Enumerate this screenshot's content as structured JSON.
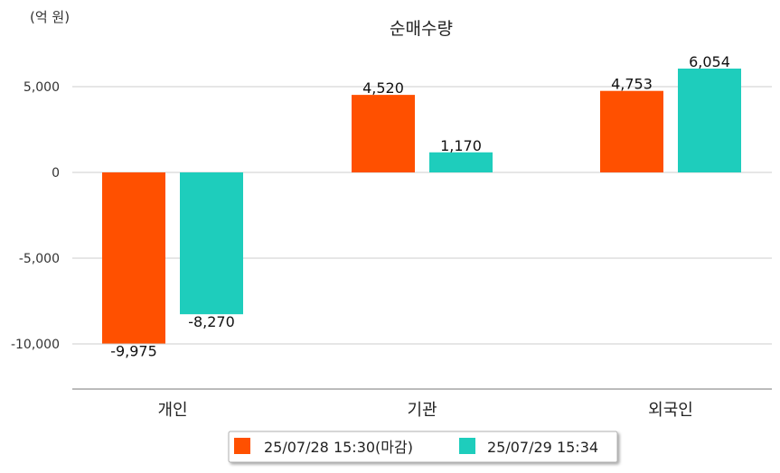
{
  "chart_data": {
    "type": "bar",
    "title": "순매수량",
    "unit_label": "(억 원)",
    "categories": [
      "개인",
      "기관",
      "외국인"
    ],
    "series": [
      {
        "name": "25/07/28 15:30(마감)",
        "color": "#ff5000",
        "values": [
          -9975,
          4520,
          4753
        ],
        "labels": [
          "-9,975",
          "4,520",
          "4,753"
        ]
      },
      {
        "name": "25/07/29 15:34",
        "color": "#1ecdbc",
        "values": [
          -8270,
          1170,
          6054
        ],
        "labels": [
          "-8,270",
          "1,170",
          "6,054"
        ]
      }
    ],
    "yticks": [
      5000,
      0,
      -5000,
      -10000
    ],
    "ytick_labels": [
      "5,000",
      "0",
      "-5,000",
      "-10,000"
    ],
    "ylim": [
      -12500,
      7500
    ],
    "grid": true,
    "legend_position": "bottom-center"
  }
}
